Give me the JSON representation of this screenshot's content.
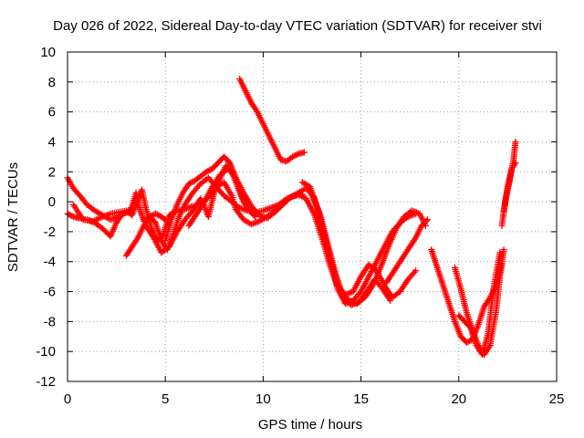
{
  "chart_data": {
    "type": "scatter",
    "title": "Day 026 of 2022, Sidereal Day-to-day VTEC variation (SDTVAR) for receiver stvi",
    "xlabel": "GPS time / hours",
    "ylabel": "SDTVAR / TECUs",
    "xlim": [
      0,
      25
    ],
    "ylim": [
      -12,
      10
    ],
    "xticks": [
      "0",
      "5",
      "10",
      "15",
      "20",
      "25"
    ],
    "yticks": [
      "-12",
      "-10",
      "-8",
      "-6",
      "-4",
      "-2",
      "0",
      "2",
      "4",
      "6",
      "8",
      "10"
    ],
    "grid": true,
    "legend": "none",
    "marker": "+",
    "color": "#ff0000",
    "series": [
      {
        "x": [
          0.0,
          0.3,
          0.7,
          1.0,
          1.4,
          1.8,
          2.2,
          2.6,
          3.0
        ],
        "y": [
          1.6,
          0.9,
          0.3,
          -0.2,
          -0.6,
          -0.9,
          -1.2,
          -1.0,
          -0.7
        ]
      },
      {
        "x": [
          0.0,
          0.3,
          0.6,
          1.0,
          1.4,
          1.8,
          2.2,
          2.5,
          2.8,
          3.1,
          3.3,
          3.5,
          3.7,
          3.9,
          4.2,
          4.5,
          4.8,
          5.0
        ],
        "y": [
          -0.8,
          -1.0,
          -1.1,
          -1.2,
          -1.4,
          -1.8,
          -2.3,
          -1.4,
          -0.8,
          -0.7,
          -0.3,
          0.6,
          -0.5,
          -1.3,
          -1.0,
          -0.8,
          -1.0,
          -1.2
        ]
      },
      {
        "x": [
          0.3,
          0.8,
          1.3,
          1.8,
          2.2,
          2.6,
          3.0,
          3.3,
          3.5,
          3.8,
          4.0,
          4.3,
          4.6,
          4.9,
          5.2,
          5.6,
          6.0,
          6.4,
          6.8,
          7.2,
          7.6,
          8.0,
          8.4,
          8.6,
          9.0,
          9.4,
          9.8,
          10.2,
          10.6,
          11.0,
          11.4,
          11.8,
          12.2
        ],
        "y": [
          -0.2,
          -1.2,
          -1.3,
          -1.0,
          -0.8,
          -0.7,
          -0.6,
          -0.9,
          -0.2,
          0.8,
          -0.4,
          -1.8,
          -2.6,
          -2.2,
          -0.9,
          -0.6,
          -0.5,
          -0.3,
          -0.2,
          0.3,
          1.0,
          1.3,
          0.4,
          -0.5,
          -1.2,
          -1.5,
          -1.3,
          -1.0,
          -0.6,
          -0.2,
          0.3,
          0.5,
          0.2
        ]
      },
      {
        "x": [
          3.0,
          3.3,
          3.6,
          3.9,
          4.2,
          4.5,
          4.8,
          5.1,
          5.4,
          5.7,
          6.0,
          6.4,
          6.8,
          7.2,
          7.6,
          8.0,
          8.4,
          8.8,
          9.2,
          9.6,
          10.0,
          10.4,
          10.8,
          11.2,
          11.6,
          12.0
        ],
        "y": [
          -3.6,
          -3.0,
          -2.4,
          -1.6,
          -1.0,
          -1.4,
          -2.6,
          -3.2,
          -2.2,
          -1.0,
          -0.2,
          0.6,
          1.2,
          1.6,
          1.0,
          0.4,
          0.0,
          -0.4,
          -0.6,
          -0.7,
          -0.6,
          -0.4,
          -0.2,
          0.2,
          0.4,
          0.5
        ]
      },
      {
        "x": [
          4.0,
          4.4,
          4.8,
          5.2,
          5.6,
          6.0,
          6.4,
          6.8,
          7.0,
          7.2,
          7.5,
          7.8,
          8.1,
          8.4,
          8.7,
          9.0,
          9.3,
          9.6
        ],
        "y": [
          -1.6,
          -2.4,
          -3.4,
          -3.0,
          -2.0,
          -1.2,
          -0.6,
          0.2,
          -0.3,
          -1.0,
          0.6,
          1.6,
          2.4,
          2.0,
          1.0,
          0.0,
          -0.6,
          -1.0
        ]
      },
      {
        "x": [
          5.0,
          5.3,
          5.6,
          5.9,
          6.2,
          6.5,
          6.8,
          7.1,
          7.4,
          7.7,
          8.0,
          8.3,
          8.6,
          8.9,
          9.2
        ],
        "y": [
          -2.6,
          -1.2,
          -0.2,
          0.6,
          1.2,
          1.4,
          1.7,
          2.0,
          2.2,
          2.6,
          3.0,
          2.6,
          1.6,
          0.4,
          -0.4
        ]
      },
      {
        "x": [
          6.2,
          6.6,
          7.0,
          7.4,
          7.8,
          8.2,
          8.6,
          9.0,
          9.4,
          9.8,
          10.2,
          10.6,
          11.0,
          11.4,
          11.8,
          12.2,
          12.6,
          13.0,
          13.4,
          13.8,
          14.2,
          14.6,
          15.0,
          15.4,
          15.8,
          16.2,
          16.6,
          17.0,
          17.4,
          17.8
        ],
        "y": [
          -1.6,
          -0.8,
          0.0,
          1.0,
          1.8,
          2.2,
          1.6,
          0.6,
          -0.3,
          -0.9,
          -1.1,
          -0.7,
          -0.2,
          0.3,
          0.6,
          0.9,
          0.3,
          -1.6,
          -3.8,
          -5.8,
          -6.8,
          -6.6,
          -6.0,
          -5.0,
          -4.0,
          -3.0,
          -2.0,
          -1.4,
          -1.0,
          -0.8
        ]
      },
      {
        "x": [
          8.8,
          9.1,
          9.4,
          9.7,
          10.0,
          10.3,
          10.6,
          10.9,
          11.2,
          11.5,
          11.8,
          12.1
        ],
        "y": [
          8.2,
          7.4,
          6.6,
          6.0,
          5.2,
          4.4,
          3.6,
          2.8,
          2.7,
          3.0,
          3.2,
          3.3
        ]
      },
      {
        "x": [
          12.0,
          12.4,
          12.8,
          13.2,
          13.6,
          14.0,
          14.4,
          14.8,
          15.2,
          15.6,
          16.0,
          16.4,
          16.8,
          17.2,
          17.6,
          18.0,
          18.3
        ],
        "y": [
          1.3,
          1.0,
          -0.5,
          -2.6,
          -4.6,
          -6.0,
          -6.6,
          -6.8,
          -6.4,
          -5.6,
          -4.4,
          -3.0,
          -1.8,
          -1.0,
          -0.6,
          -0.8,
          -1.6
        ]
      },
      {
        "x": [
          12.2,
          12.6,
          13.0,
          13.4,
          13.8,
          14.2,
          14.6,
          15.0,
          15.4,
          15.8,
          16.2,
          16.6,
          17.0,
          17.4,
          17.8
        ],
        "y": [
          0.2,
          -0.8,
          -2.4,
          -4.2,
          -5.6,
          -6.2,
          -6.0,
          -5.0,
          -4.2,
          -4.6,
          -5.6,
          -6.4,
          -6.0,
          -5.2,
          -4.6
        ]
      },
      {
        "x": [
          12.5,
          12.9,
          13.3,
          13.7,
          14.1,
          14.5,
          14.9,
          15.3,
          15.7,
          16.1,
          16.5
        ],
        "y": [
          0.4,
          -0.8,
          -2.8,
          -4.8,
          -6.4,
          -6.9,
          -6.7,
          -6.0,
          -5.2,
          -5.8,
          -6.6
        ]
      },
      {
        "x": [
          16.3,
          16.7,
          17.1,
          17.5,
          17.8,
          18.1,
          18.4
        ],
        "y": [
          -5.4,
          -4.6,
          -3.8,
          -3.0,
          -2.4,
          -1.6,
          -1.2
        ]
      },
      {
        "x": [
          18.6,
          18.9,
          19.2,
          19.5,
          19.8,
          20.1,
          20.4,
          20.7,
          21.0,
          21.3,
          21.6,
          21.9,
          22.2
        ],
        "y": [
          -3.2,
          -4.4,
          -5.6,
          -6.8,
          -8.0,
          -9.0,
          -9.4,
          -9.2,
          -8.2,
          -7.0,
          -6.4,
          -5.6,
          -4.2
        ]
      },
      {
        "x": [
          19.8,
          20.1,
          20.4,
          20.7,
          21.0,
          21.3,
          21.6,
          21.9,
          22.1,
          22.3
        ],
        "y": [
          -4.4,
          -5.8,
          -7.4,
          -8.6,
          -9.6,
          -10.2,
          -9.6,
          -7.4,
          -5.0,
          -3.2
        ]
      },
      {
        "x": [
          20.0,
          20.3,
          20.6,
          20.9,
          21.2,
          21.5,
          21.8,
          22.1
        ],
        "y": [
          -7.6,
          -8.0,
          -8.4,
          -9.6,
          -10.2,
          -8.8,
          -5.6,
          -3.4
        ]
      },
      {
        "x": [
          22.2,
          22.4,
          22.6,
          22.8,
          22.9
        ],
        "y": [
          -1.6,
          0.2,
          1.4,
          2.8,
          4.0
        ]
      },
      {
        "x": [
          22.3,
          22.5,
          22.7,
          22.9
        ],
        "y": [
          -0.6,
          1.0,
          2.2,
          2.6
        ]
      }
    ]
  }
}
